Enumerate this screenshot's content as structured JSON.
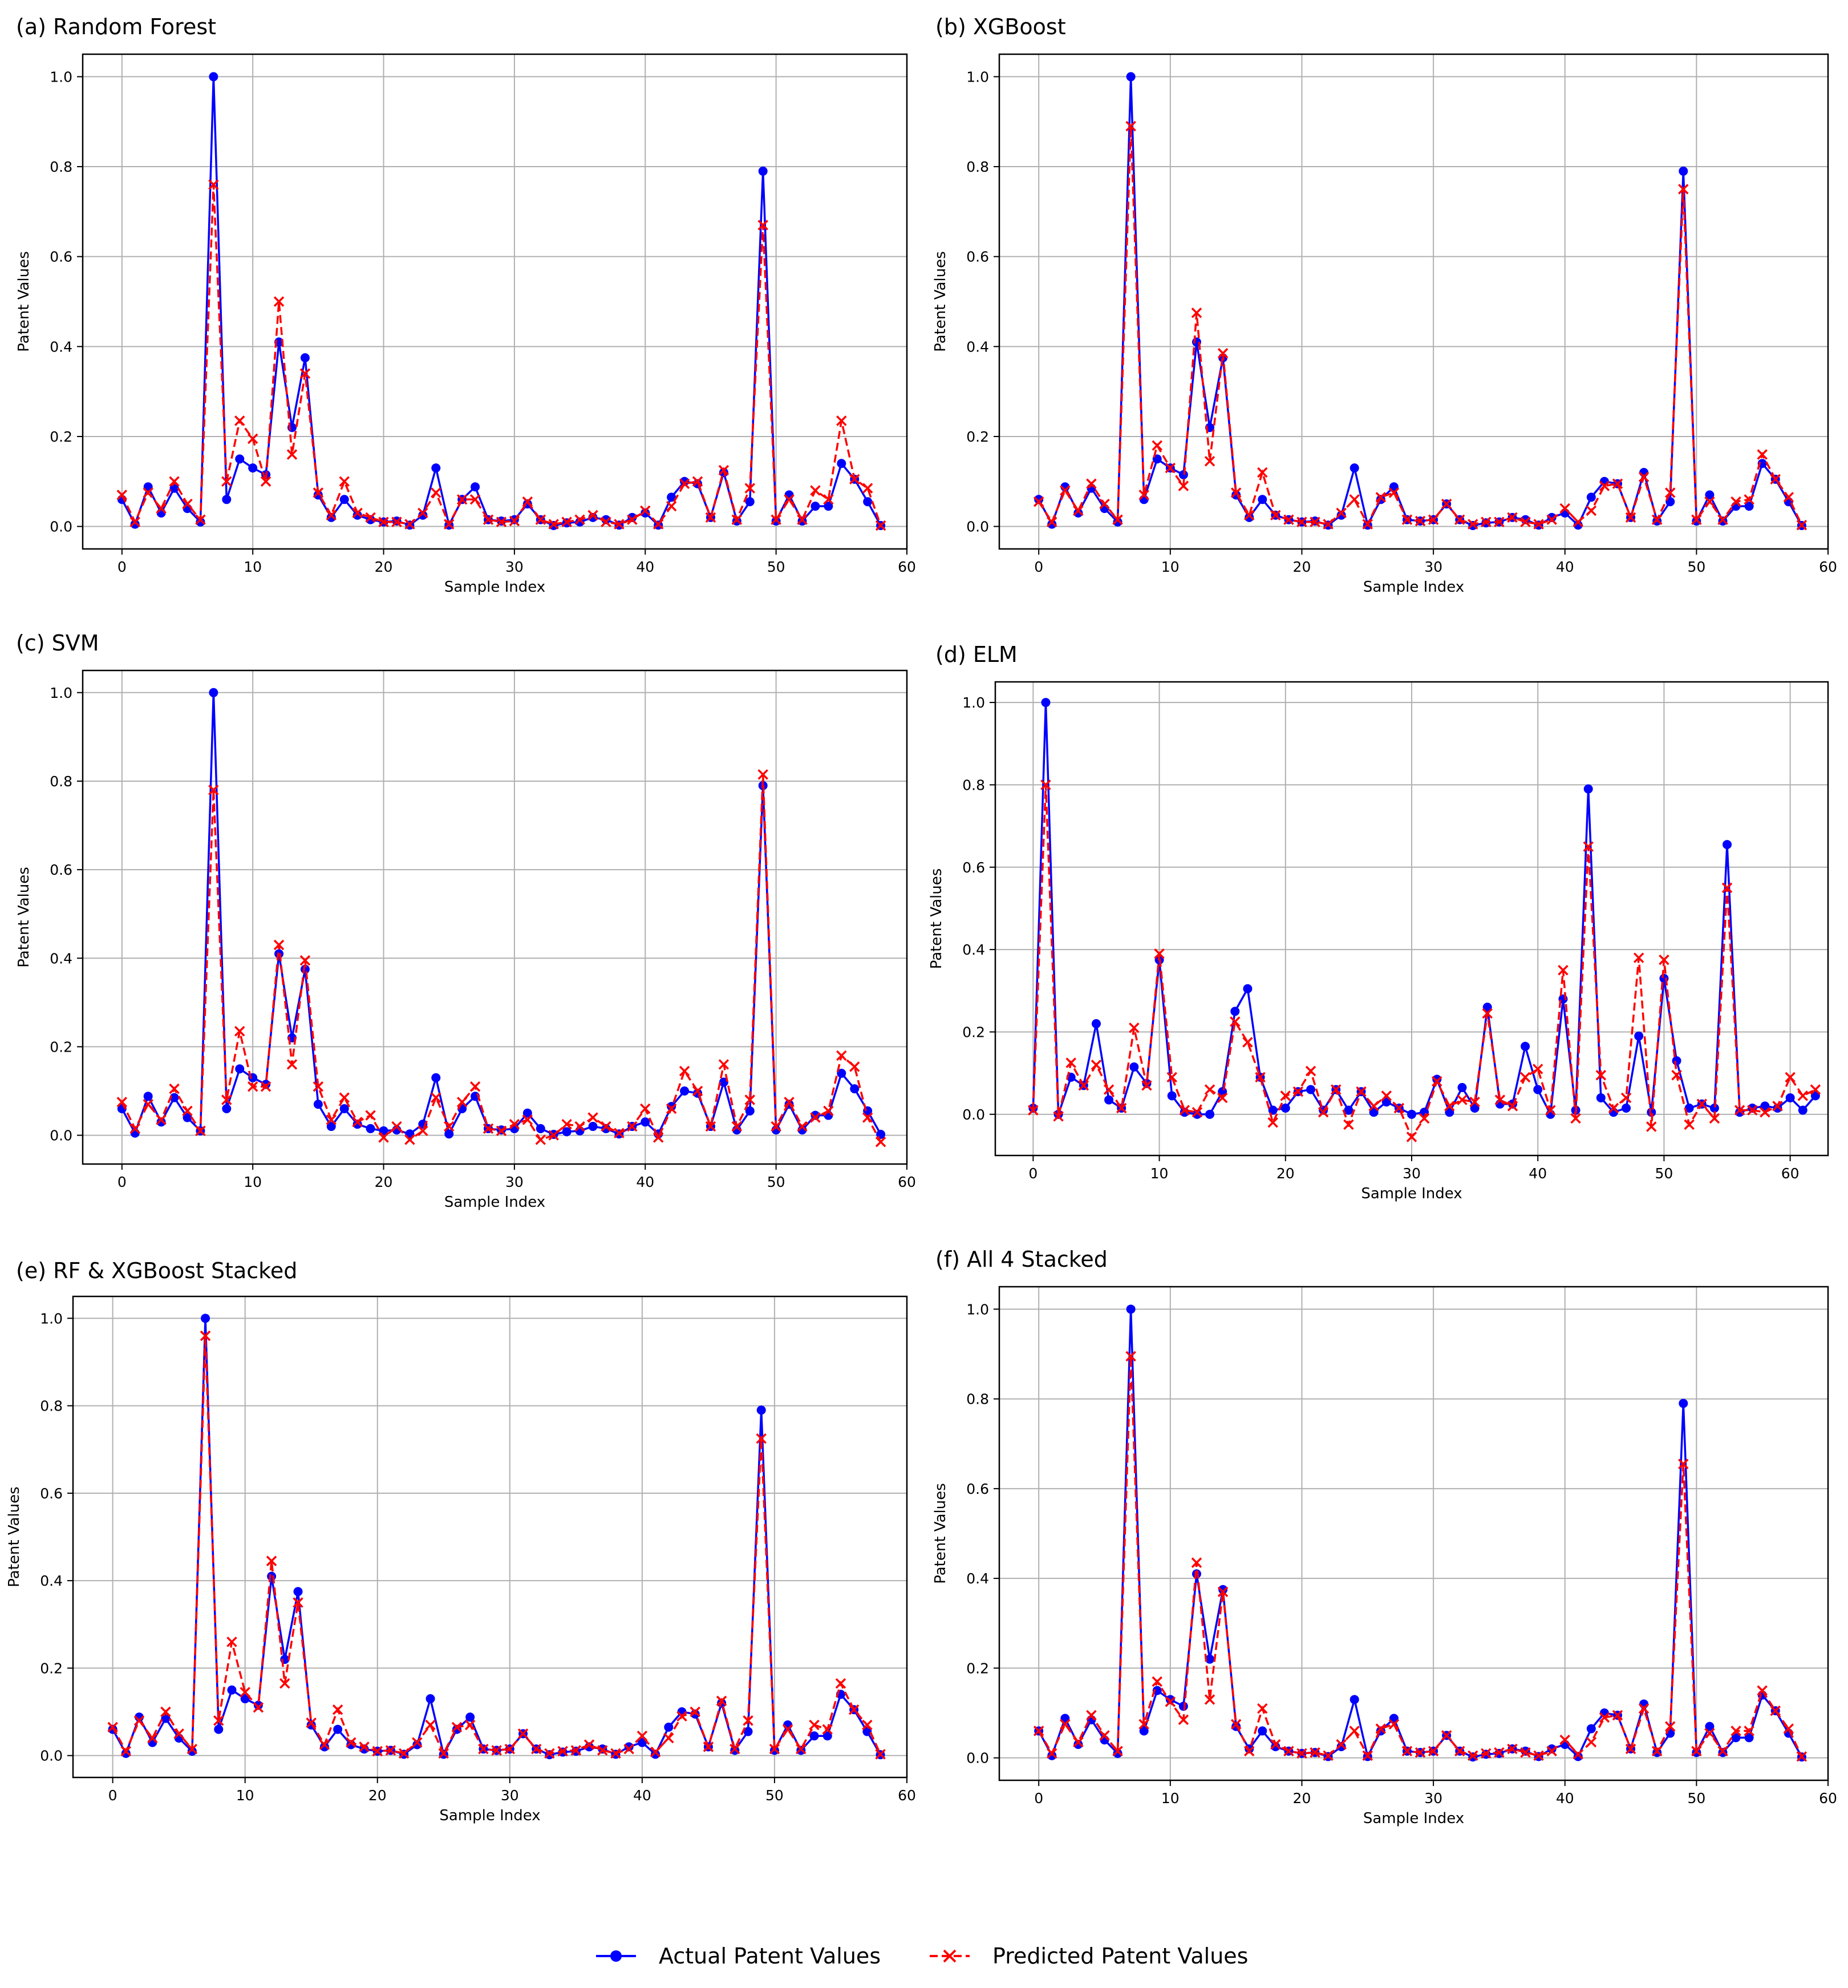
{
  "legend": {
    "actual_label": "Actual Patent Values",
    "predicted_label": "Predicted Patent Values",
    "placement": "bottom-center"
  },
  "colors": {
    "actual": "#0000ff",
    "predicted": "#ff0000",
    "grid": "#b0b0b0"
  },
  "chart_data": [
    {
      "type": "line",
      "title": "(a) Random Forest",
      "xlabel": "Sample Index",
      "ylabel": "Patent Values",
      "xlim": [
        -3,
        60
      ],
      "ylim": [
        -0.05,
        1.05
      ],
      "xticks": [
        0,
        10,
        20,
        30,
        40,
        50,
        60
      ],
      "yticks": [
        0.0,
        0.2,
        0.4,
        0.6,
        0.8,
        1.0
      ],
      "grid": true,
      "series": [
        {
          "name": "Actual Patent Values",
          "values": [
            0.06,
            0.005,
            0.088,
            0.03,
            0.085,
            0.04,
            0.01,
            1.0,
            0.06,
            0.15,
            0.13,
            0.115,
            0.41,
            0.22,
            0.375,
            0.07,
            0.02,
            0.06,
            0.025,
            0.015,
            0.01,
            0.012,
            0.003,
            0.025,
            0.13,
            0.003,
            0.06,
            0.088,
            0.015,
            0.012,
            0.015,
            0.05,
            0.015,
            0.002,
            0.008,
            0.01,
            0.02,
            0.015,
            0.003,
            0.02,
            0.03,
            0.003,
            0.065,
            0.1,
            0.095,
            0.02,
            0.12,
            0.012,
            0.055,
            0.79,
            0.012,
            0.07,
            0.012,
            0.045,
            0.045,
            0.14,
            0.105,
            0.055,
            0.002
          ]
        },
        {
          "name": "Predicted Patent Values",
          "values": [
            0.07,
            0.01,
            0.075,
            0.04,
            0.1,
            0.05,
            0.015,
            0.76,
            0.1,
            0.235,
            0.195,
            0.1,
            0.5,
            0.16,
            0.34,
            0.075,
            0.025,
            0.1,
            0.03,
            0.02,
            0.01,
            0.01,
            0.005,
            0.03,
            0.075,
            0.005,
            0.06,
            0.06,
            0.015,
            0.01,
            0.012,
            0.055,
            0.015,
            0.005,
            0.01,
            0.015,
            0.025,
            0.01,
            0.005,
            0.015,
            0.035,
            0.005,
            0.045,
            0.095,
            0.1,
            0.02,
            0.125,
            0.015,
            0.085,
            0.67,
            0.015,
            0.06,
            0.015,
            0.08,
            0.06,
            0.235,
            0.105,
            0.085,
            0.002
          ]
        }
      ]
    },
    {
      "type": "line",
      "title": "(b) XGBoost",
      "xlabel": "Sample Index",
      "ylabel": "Patent Values",
      "xlim": [
        -3,
        60
      ],
      "ylim": [
        -0.05,
        1.05
      ],
      "xticks": [
        0,
        10,
        20,
        30,
        40,
        50,
        60
      ],
      "yticks": [
        0.0,
        0.2,
        0.4,
        0.6,
        0.8,
        1.0
      ],
      "grid": true,
      "series": [
        {
          "name": "Actual Patent Values",
          "values": [
            0.06,
            0.005,
            0.088,
            0.03,
            0.085,
            0.04,
            0.01,
            1.0,
            0.06,
            0.15,
            0.13,
            0.115,
            0.41,
            0.22,
            0.375,
            0.07,
            0.02,
            0.06,
            0.025,
            0.015,
            0.01,
            0.012,
            0.003,
            0.025,
            0.13,
            0.003,
            0.06,
            0.088,
            0.015,
            0.012,
            0.015,
            0.05,
            0.015,
            0.002,
            0.008,
            0.01,
            0.02,
            0.015,
            0.003,
            0.02,
            0.03,
            0.003,
            0.065,
            0.1,
            0.095,
            0.02,
            0.12,
            0.012,
            0.055,
            0.79,
            0.012,
            0.07,
            0.012,
            0.045,
            0.045,
            0.14,
            0.105,
            0.055,
            0.002
          ]
        },
        {
          "name": "Predicted Patent Values",
          "values": [
            0.055,
            0.01,
            0.08,
            0.035,
            0.095,
            0.05,
            0.015,
            0.89,
            0.07,
            0.18,
            0.13,
            0.09,
            0.475,
            0.145,
            0.385,
            0.075,
            0.025,
            0.12,
            0.025,
            0.015,
            0.01,
            0.01,
            0.005,
            0.03,
            0.06,
            0.005,
            0.065,
            0.075,
            0.015,
            0.012,
            0.015,
            0.05,
            0.015,
            0.005,
            0.01,
            0.01,
            0.02,
            0.01,
            0.005,
            0.015,
            0.04,
            0.01,
            0.035,
            0.09,
            0.095,
            0.02,
            0.11,
            0.015,
            0.075,
            0.75,
            0.015,
            0.055,
            0.015,
            0.055,
            0.06,
            0.16,
            0.105,
            0.065,
            0.003
          ]
        }
      ]
    },
    {
      "type": "line",
      "title": "(c) SVM",
      "xlabel": "Sample Index",
      "ylabel": "Patent Values",
      "xlim": [
        -3,
        60
      ],
      "ylim": [
        -0.065,
        1.05
      ],
      "xticks": [
        0,
        10,
        20,
        30,
        40,
        50,
        60
      ],
      "yticks": [
        0.0,
        0.2,
        0.4,
        0.6,
        0.8,
        1.0
      ],
      "grid": true,
      "series": [
        {
          "name": "Actual Patent Values",
          "values": [
            0.06,
            0.005,
            0.088,
            0.03,
            0.085,
            0.04,
            0.01,
            1.0,
            0.06,
            0.15,
            0.13,
            0.115,
            0.41,
            0.22,
            0.375,
            0.07,
            0.02,
            0.06,
            0.025,
            0.015,
            0.01,
            0.012,
            0.003,
            0.025,
            0.13,
            0.003,
            0.06,
            0.088,
            0.015,
            0.012,
            0.015,
            0.05,
            0.015,
            0.002,
            0.008,
            0.01,
            0.02,
            0.015,
            0.003,
            0.02,
            0.03,
            0.003,
            0.065,
            0.1,
            0.095,
            0.02,
            0.12,
            0.012,
            0.055,
            0.79,
            0.012,
            0.07,
            0.012,
            0.045,
            0.045,
            0.14,
            0.105,
            0.055,
            0.002
          ]
        },
        {
          "name": "Predicted Patent Values",
          "values": [
            0.075,
            0.015,
            0.07,
            0.035,
            0.105,
            0.055,
            0.01,
            0.78,
            0.08,
            0.235,
            0.11,
            0.11,
            0.43,
            0.16,
            0.395,
            0.11,
            0.035,
            0.085,
            0.03,
            0.045,
            -0.005,
            0.02,
            -0.01,
            0.01,
            0.085,
            0.02,
            0.075,
            0.11,
            0.015,
            0.01,
            0.025,
            0.035,
            -0.01,
            0.0,
            0.025,
            0.02,
            0.04,
            0.02,
            0.005,
            0.02,
            0.06,
            -0.005,
            0.06,
            0.145,
            0.1,
            0.02,
            0.16,
            0.02,
            0.08,
            0.815,
            0.02,
            0.075,
            0.02,
            0.04,
            0.055,
            0.18,
            0.155,
            0.04,
            -0.015
          ]
        }
      ]
    },
    {
      "type": "line",
      "title": "(d) ELM",
      "xlabel": "Sample Index",
      "ylabel": "Patent Values",
      "xlim": [
        -3,
        63
      ],
      "ylim": [
        -0.1,
        1.05
      ],
      "xticks": [
        0,
        10,
        20,
        30,
        40,
        50,
        60
      ],
      "yticks": [
        0.0,
        0.2,
        0.4,
        0.6,
        0.8,
        1.0
      ],
      "grid": true,
      "series": [
        {
          "name": "Actual Patent Values",
          "values": [
            0.015,
            1.0,
            0.0,
            0.09,
            0.07,
            0.22,
            0.035,
            0.015,
            0.115,
            0.075,
            0.375,
            0.045,
            0.005,
            0.0,
            0.0,
            0.055,
            0.25,
            0.305,
            0.09,
            0.01,
            0.015,
            0.055,
            0.06,
            0.01,
            0.06,
            0.01,
            0.055,
            0.005,
            0.03,
            0.015,
            0.0,
            0.005,
            0.085,
            0.005,
            0.065,
            0.015,
            0.26,
            0.025,
            0.025,
            0.165,
            0.06,
            0.0,
            0.28,
            0.01,
            0.79,
            0.04,
            0.005,
            0.015,
            0.19,
            0.005,
            0.33,
            0.13,
            0.015,
            0.025,
            0.015,
            0.655,
            0.005,
            0.015,
            0.02,
            0.015,
            0.04,
            0.01,
            0.045
          ]
        },
        {
          "name": "Predicted Patent Values",
          "values": [
            0.01,
            0.8,
            -0.005,
            0.125,
            0.07,
            0.12,
            0.06,
            0.015,
            0.21,
            0.07,
            0.39,
            0.09,
            0.01,
            0.005,
            0.06,
            0.04,
            0.225,
            0.175,
            0.09,
            -0.02,
            0.045,
            0.055,
            0.105,
            0.005,
            0.06,
            -0.025,
            0.055,
            0.02,
            0.045,
            0.015,
            -0.055,
            -0.01,
            0.08,
            0.02,
            0.035,
            0.03,
            0.245,
            0.035,
            0.02,
            0.09,
            0.11,
            0.01,
            0.35,
            -0.01,
            0.65,
            0.095,
            0.015,
            0.04,
            0.38,
            -0.03,
            0.375,
            0.095,
            -0.025,
            0.025,
            -0.01,
            0.55,
            0.01,
            0.01,
            0.005,
            0.02,
            0.09,
            0.045,
            0.06
          ]
        }
      ]
    },
    {
      "type": "line",
      "title": "(e) RF & XGBoost Stacked",
      "xlabel": "Sample Index",
      "ylabel": "Patent Values",
      "xlim": [
        -3,
        60
      ],
      "ylim": [
        -0.05,
        1.05
      ],
      "xticks": [
        0,
        10,
        20,
        30,
        40,
        50,
        60
      ],
      "yticks": [
        0.0,
        0.2,
        0.4,
        0.6,
        0.8,
        1.0
      ],
      "grid": true,
      "series": [
        {
          "name": "Actual Patent Values",
          "values": [
            0.06,
            0.005,
            0.088,
            0.03,
            0.085,
            0.04,
            0.01,
            1.0,
            0.06,
            0.15,
            0.13,
            0.115,
            0.41,
            0.22,
            0.375,
            0.07,
            0.02,
            0.06,
            0.025,
            0.015,
            0.01,
            0.012,
            0.003,
            0.025,
            0.13,
            0.003,
            0.06,
            0.088,
            0.015,
            0.012,
            0.015,
            0.05,
            0.015,
            0.002,
            0.008,
            0.01,
            0.02,
            0.015,
            0.003,
            0.02,
            0.03,
            0.003,
            0.065,
            0.1,
            0.095,
            0.02,
            0.12,
            0.012,
            0.055,
            0.79,
            0.012,
            0.07,
            0.012,
            0.045,
            0.045,
            0.14,
            0.105,
            0.055,
            0.002
          ]
        },
        {
          "name": "Predicted Patent Values",
          "values": [
            0.065,
            0.01,
            0.08,
            0.04,
            0.1,
            0.05,
            0.015,
            0.96,
            0.08,
            0.26,
            0.145,
            0.11,
            0.445,
            0.165,
            0.35,
            0.075,
            0.025,
            0.105,
            0.03,
            0.02,
            0.01,
            0.012,
            0.005,
            0.03,
            0.07,
            0.005,
            0.065,
            0.07,
            0.015,
            0.012,
            0.015,
            0.05,
            0.015,
            0.005,
            0.01,
            0.012,
            0.025,
            0.012,
            0.005,
            0.015,
            0.045,
            0.008,
            0.04,
            0.09,
            0.1,
            0.02,
            0.125,
            0.015,
            0.08,
            0.725,
            0.015,
            0.06,
            0.015,
            0.07,
            0.06,
            0.165,
            0.105,
            0.07,
            0.003
          ]
        }
      ]
    },
    {
      "type": "line",
      "title": "(f) All 4 Stacked",
      "xlabel": "Sample Index",
      "ylabel": "Patent Values",
      "xlim": [
        -3,
        60
      ],
      "ylim": [
        -0.05,
        1.05
      ],
      "xticks": [
        0,
        10,
        20,
        30,
        40,
        50,
        60
      ],
      "yticks": [
        0.0,
        0.2,
        0.4,
        0.6,
        0.8,
        1.0
      ],
      "grid": true,
      "series": [
        {
          "name": "Actual Patent Values",
          "values": [
            0.06,
            0.005,
            0.088,
            0.03,
            0.085,
            0.04,
            0.01,
            1.0,
            0.06,
            0.15,
            0.13,
            0.115,
            0.41,
            0.22,
            0.375,
            0.07,
            0.02,
            0.06,
            0.025,
            0.015,
            0.01,
            0.012,
            0.003,
            0.025,
            0.13,
            0.003,
            0.06,
            0.088,
            0.015,
            0.012,
            0.015,
            0.05,
            0.015,
            0.002,
            0.008,
            0.01,
            0.02,
            0.015,
            0.003,
            0.02,
            0.03,
            0.003,
            0.065,
            0.1,
            0.095,
            0.02,
            0.12,
            0.012,
            0.055,
            0.79,
            0.012,
            0.07,
            0.012,
            0.045,
            0.045,
            0.14,
            0.105,
            0.055,
            0.002
          ]
        },
        {
          "name": "Predicted Patent Values",
          "values": [
            0.06,
            0.01,
            0.075,
            0.035,
            0.095,
            0.05,
            0.015,
            0.895,
            0.075,
            0.17,
            0.125,
            0.085,
            0.435,
            0.13,
            0.37,
            0.075,
            0.015,
            0.11,
            0.03,
            0.015,
            0.01,
            0.012,
            0.005,
            0.03,
            0.06,
            0.005,
            0.065,
            0.075,
            0.015,
            0.012,
            0.015,
            0.05,
            0.015,
            0.005,
            0.01,
            0.012,
            0.02,
            0.012,
            0.005,
            0.015,
            0.04,
            0.008,
            0.035,
            0.09,
            0.095,
            0.02,
            0.11,
            0.015,
            0.07,
            0.655,
            0.015,
            0.055,
            0.015,
            0.06,
            0.06,
            0.15,
            0.105,
            0.065,
            0.003
          ]
        }
      ]
    }
  ]
}
